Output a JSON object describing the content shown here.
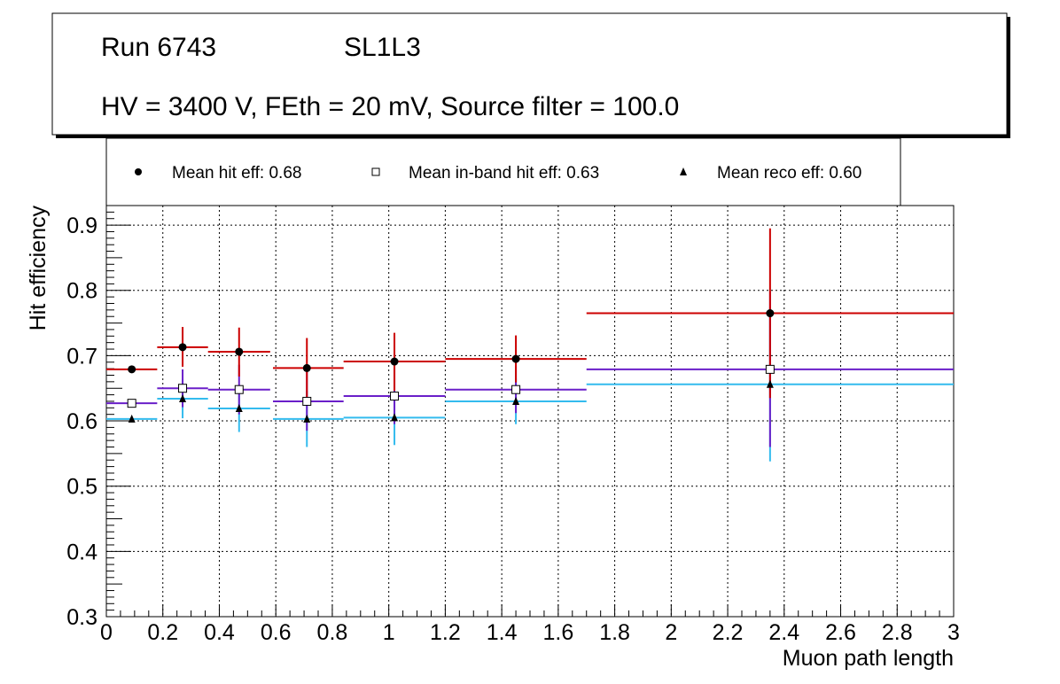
{
  "title_box": {
    "line1_run": "Run 6743",
    "line1_layer": "SL1L3",
    "line2": "HV = 3400 V, FEth = 20 mV, Source filter = 100.0"
  },
  "legend": [
    {
      "marker": "circle",
      "label": "Mean hit  eff: 0.68"
    },
    {
      "marker": "open-square",
      "label": "Mean in-band hit eff: 0.63"
    },
    {
      "marker": "triangle",
      "label": "Mean reco eff: 0.60"
    }
  ],
  "chart_data": {
    "type": "scatter",
    "xlabel": "Muon path length",
    "ylabel": "Hit efficiency",
    "xlim": [
      0,
      3
    ],
    "ylim": [
      0.3,
      0.93
    ],
    "grid": true,
    "xticks": [
      0,
      0.2,
      0.4,
      0.6,
      0.8,
      1,
      1.2,
      1.4,
      1.6,
      1.8,
      2,
      2.2,
      2.4,
      2.6,
      2.8,
      3
    ],
    "xtick_labels": [
      "0",
      "0.2",
      "0.4",
      "0.6",
      "0.8",
      "1",
      "1.2",
      "1.4",
      "1.6",
      "1.8",
      "2",
      "2.2",
      "2.4",
      "2.6",
      "2.8",
      "3"
    ],
    "yticks": [
      0.3,
      0.4,
      0.5,
      0.6,
      0.7,
      0.8,
      0.9
    ],
    "ytick_labels": [
      "0.3",
      "0.4",
      "0.5",
      "0.6",
      "0.7",
      "0.8",
      "0.9"
    ],
    "series": [
      {
        "name": "Mean hit  eff: 0.68",
        "marker": "circle",
        "color": "#cc0000",
        "points": [
          {
            "x": 0.09,
            "xlo": 0.0,
            "xhi": 0.18,
            "y": 0.679,
            "ylo": 0.679,
            "yhi": 0.679
          },
          {
            "x": 0.27,
            "xlo": 0.18,
            "xhi": 0.36,
            "y": 0.713,
            "ylo": 0.683,
            "yhi": 0.744
          },
          {
            "x": 0.47,
            "xlo": 0.36,
            "xhi": 0.58,
            "y": 0.706,
            "ylo": 0.668,
            "yhi": 0.743
          },
          {
            "x": 0.71,
            "xlo": 0.59,
            "xhi": 0.84,
            "y": 0.681,
            "ylo": 0.635,
            "yhi": 0.727
          },
          {
            "x": 1.02,
            "xlo": 0.84,
            "xhi": 1.2,
            "y": 0.691,
            "ylo": 0.646,
            "yhi": 0.735
          },
          {
            "x": 1.45,
            "xlo": 1.2,
            "xhi": 1.7,
            "y": 0.695,
            "ylo": 0.659,
            "yhi": 0.731
          },
          {
            "x": 2.35,
            "xlo": 1.7,
            "xhi": 3.0,
            "y": 0.765,
            "ylo": 0.635,
            "yhi": 0.895
          }
        ]
      },
      {
        "name": "Mean in-band hit eff: 0.63",
        "marker": "open-square",
        "color": "#6a1fc9",
        "points": [
          {
            "x": 0.09,
            "xlo": 0.0,
            "xhi": 0.18,
            "y": 0.627,
            "ylo": 0.627,
            "yhi": 0.627
          },
          {
            "x": 0.27,
            "xlo": 0.18,
            "xhi": 0.36,
            "y": 0.65,
            "ylo": 0.621,
            "yhi": 0.679
          },
          {
            "x": 0.47,
            "xlo": 0.36,
            "xhi": 0.58,
            "y": 0.648,
            "ylo": 0.61,
            "yhi": 0.686
          },
          {
            "x": 0.71,
            "xlo": 0.59,
            "xhi": 0.84,
            "y": 0.63,
            "ylo": 0.585,
            "yhi": 0.675
          },
          {
            "x": 1.02,
            "xlo": 0.84,
            "xhi": 1.2,
            "y": 0.638,
            "ylo": 0.595,
            "yhi": 0.681
          },
          {
            "x": 1.45,
            "xlo": 1.2,
            "xhi": 1.7,
            "y": 0.648,
            "ylo": 0.612,
            "yhi": 0.684
          },
          {
            "x": 2.35,
            "xlo": 1.7,
            "xhi": 3.0,
            "y": 0.679,
            "ylo": 0.56,
            "yhi": 0.798
          }
        ]
      },
      {
        "name": "Mean reco eff: 0.60",
        "marker": "triangle",
        "color": "#33bbee",
        "points": [
          {
            "x": 0.09,
            "xlo": 0.0,
            "xhi": 0.18,
            "y": 0.603,
            "ylo": 0.603,
            "yhi": 0.603
          },
          {
            "x": 0.27,
            "xlo": 0.18,
            "xhi": 0.36,
            "y": 0.634,
            "ylo": 0.604,
            "yhi": 0.664
          },
          {
            "x": 0.47,
            "xlo": 0.36,
            "xhi": 0.58,
            "y": 0.619,
            "ylo": 0.583,
            "yhi": 0.655
          },
          {
            "x": 0.71,
            "xlo": 0.59,
            "xhi": 0.84,
            "y": 0.603,
            "ylo": 0.56,
            "yhi": 0.646
          },
          {
            "x": 1.02,
            "xlo": 0.84,
            "xhi": 1.2,
            "y": 0.605,
            "ylo": 0.563,
            "yhi": 0.647
          },
          {
            "x": 1.45,
            "xlo": 1.2,
            "xhi": 1.7,
            "y": 0.63,
            "ylo": 0.595,
            "yhi": 0.665
          },
          {
            "x": 2.35,
            "xlo": 1.7,
            "xhi": 3.0,
            "y": 0.656,
            "ylo": 0.538,
            "yhi": 0.774
          }
        ]
      }
    ]
  }
}
